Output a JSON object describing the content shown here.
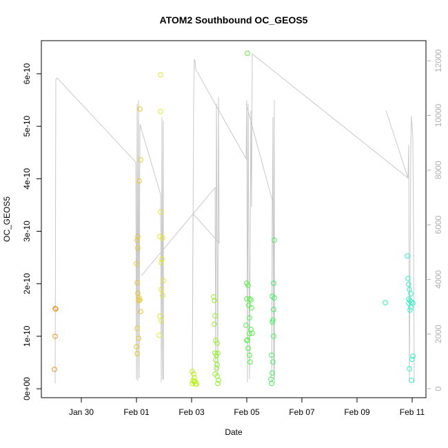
{
  "chart_data": {
    "type": "scatter",
    "title": "ATOM2 Southbound OC_GEOS5",
    "xlabel": "Date",
    "ylabel": "OC_GEOS5",
    "xlim": [
      -1.45,
      12.5
    ],
    "xticks": [
      {
        "value": 0,
        "label": "Jan 30"
      },
      {
        "value": 2,
        "label": "Feb 01"
      },
      {
        "value": 4,
        "label": "Feb 03"
      },
      {
        "value": 6,
        "label": "Feb 05"
      },
      {
        "value": 8,
        "label": "Feb 07"
      },
      {
        "value": 10,
        "label": "Feb 09"
      },
      {
        "value": 12,
        "label": "Feb 11"
      }
    ],
    "ylim": [
      -1.7e-11,
      6.63e-10
    ],
    "yticks": [
      {
        "value": 0,
        "label": "0e+00"
      },
      {
        "value": 1e-10,
        "label": "1e-10"
      },
      {
        "value": 2e-10,
        "label": "2e-10"
      },
      {
        "value": 3e-10,
        "label": "3e-10"
      },
      {
        "value": 4e-10,
        "label": "4e-10"
      },
      {
        "value": 5e-10,
        "label": "5e-10"
      },
      {
        "value": 6e-10,
        "label": "6e-10"
      }
    ],
    "y2lim": [
      -328,
      12737
    ],
    "y2ticks": [
      0,
      2000,
      4000,
      6000,
      8000,
      10000,
      12000
    ],
    "series": [
      {
        "type": "line",
        "axis": "y2",
        "color": "#c8c8c8",
        "x": [
          -0.95,
          -0.925,
          -0.875,
          1.975,
          2.0,
          2.025,
          2.05,
          2.075,
          2.1,
          2.125,
          2.875,
          2.9,
          2.925,
          2.95,
          2.975,
          2.98,
          null,
          2.175,
          4.85,
          4.875,
          4.9,
          4.95,
          4.975,
          5.0,
          4.05,
          4.025,
          4.075,
          4.1,
          4.125,
          4.15,
          5.975,
          6.0,
          6.025,
          6.05,
          6.1,
          6.15,
          6.175,
          6.2,
          11.85,
          11.875,
          11.9,
          11.95,
          11.975,
          12.025,
          12.05,
          12.075,
          null,
          5.975,
          6.925,
          6.9,
          6.95,
          6.975,
          7.0,
          7.01,
          null,
          11.05,
          11.85
        ],
        "values": [
          200,
          11310,
          11370,
          8290,
          350,
          10430,
          280,
          10560,
          400,
          9680,
          7110,
          230,
          9930,
          350,
          9800,
          300,
          null,
          4130,
          7360,
          600,
          10430,
          480,
          10680,
          5340,
          6400,
          230,
          10680,
          12070,
          12000,
          11690,
          8420,
          10560,
          230,
          10430,
          350,
          10180,
          6650,
          12250,
          7710,
          8920,
          230,
          8920,
          9980,
          9170,
          5900,
          230,
          null,
          10430,
          6900,
          230,
          9930,
          350,
          10560,
          230,
          null,
          10180,
          7710
        ]
      },
      {
        "color": "#f0901a",
        "x": [
          -0.95,
          -0.925,
          -0.95,
          -0.975
        ],
        "values": [
          1.53e-10,
          1.52e-10,
          1e-10,
          3.7e-11
        ]
      },
      {
        "color": "#e8c828",
        "x": [
          2.125,
          2.15,
          2.1,
          2.05,
          2.025,
          2.0,
          2.025,
          2.05,
          2.1,
          2.075,
          2.125,
          2.15,
          2.025,
          2.075,
          2.0,
          2.025,
          2.05
        ],
        "values": [
          5.33e-10,
          4.36e-10,
          3.96e-10,
          2.9e-10,
          2.83e-10,
          2.38e-10,
          2.02e-10,
          1.82e-10,
          1.73e-10,
          1.68e-10,
          1.69e-10,
          1.47e-10,
          1.15e-10,
          9.6e-11,
          8e-11,
          6.7e-11,
          2.68e-10
        ]
      },
      {
        "color": "#e0e828",
        "x": [
          2.875,
          2.875,
          2.875,
          2.85,
          2.95,
          2.925,
          2.9,
          2.975,
          2.9,
          2.95,
          2.85,
          2.9,
          2.825
        ],
        "values": [
          5.98e-10,
          5.28e-10,
          3.37e-10,
          2.9e-10,
          2.87e-10,
          2.47e-10,
          2.4e-10,
          2.06e-10,
          1.89e-10,
          1.78e-10,
          1.38e-10,
          1.3e-10,
          1.02e-10
        ]
      },
      {
        "color": "#b8f010",
        "x": [
          4.025,
          4.075,
          4.1,
          4.05,
          4.125,
          4.15,
          4.025,
          4.1,
          4.175
        ],
        "values": [
          3.3e-11,
          2.8e-11,
          2.1e-11,
          1.6e-11,
          1.4e-11,
          9e-12,
          1e-11,
          1.3e-11,
          9e-12
        ]
      },
      {
        "color": "#90f028",
        "x": [
          4.8,
          4.825,
          4.85,
          4.825,
          4.875,
          4.925,
          4.85,
          4.9,
          4.95,
          4.875,
          4.925,
          4.9,
          4.85,
          4.925,
          4.975,
          4.95
        ],
        "values": [
          1.75e-10,
          1.68e-10,
          1.39e-10,
          1.23e-10,
          9.2e-11,
          8.7e-11,
          6.8e-11,
          6.4e-11,
          6.8e-11,
          5.5e-11,
          4.6e-11,
          3.9e-11,
          2.8e-11,
          2.4e-11,
          1.6e-11,
          1e-11
        ]
      },
      {
        "color": "#50f040",
        "x": [
          6.025,
          6.0,
          6.05,
          6.0,
          6.1,
          6.15,
          6.075,
          6.175,
          6.1,
          5.975,
          6.15,
          6.1,
          6.2,
          6.0,
          6.05,
          6.025,
          6.1,
          6.125
        ],
        "values": [
          6.39e-10,
          2.01e-10,
          1.97e-10,
          1.71e-10,
          1.71e-10,
          1.69e-10,
          1.59e-10,
          1.54e-10,
          1.35e-10,
          1.21e-10,
          1.13e-10,
          1.05e-10,
          1.06e-10,
          9.2e-11,
          7.7e-11,
          9.3e-11,
          6.4e-11,
          5.1e-11
        ]
      },
      {
        "color": "#40f060",
        "x": [
          7.0,
          6.975,
          6.925,
          7.0,
          6.975,
          6.95,
          6.925,
          6.975,
          6.9,
          6.95,
          6.925,
          6.875,
          6.9
        ],
        "values": [
          2.83e-10,
          2.01e-10,
          1.76e-10,
          1.73e-10,
          1.51e-10,
          1.31e-10,
          1.27e-10,
          1e-10,
          6.4e-11,
          5.1e-11,
          3e-11,
          1.8e-11,
          1e-11
        ]
      },
      {
        "color": "#30f0a0",
        "x": [
          11.025
        ],
        "values": [
          1.64e-10
        ]
      },
      {
        "color": "#30f0c8",
        "x": [
          11.825,
          11.85,
          11.875,
          11.9,
          11.95,
          11.875,
          11.925,
          11.975,
          12.025,
          11.875,
          11.95,
          11.925,
          12.025,
          12.0,
          11.9,
          11.975
        ],
        "values": [
          2.53e-10,
          2.1e-10,
          1.99e-10,
          1.89e-10,
          1.81e-10,
          1.71e-10,
          1.68e-10,
          1.65e-10,
          1.63e-10,
          1.63e-10,
          1.55e-10,
          1.5e-10,
          6.2e-11,
          5.6e-11,
          3.8e-11,
          1.6e-11
        ]
      }
    ]
  }
}
